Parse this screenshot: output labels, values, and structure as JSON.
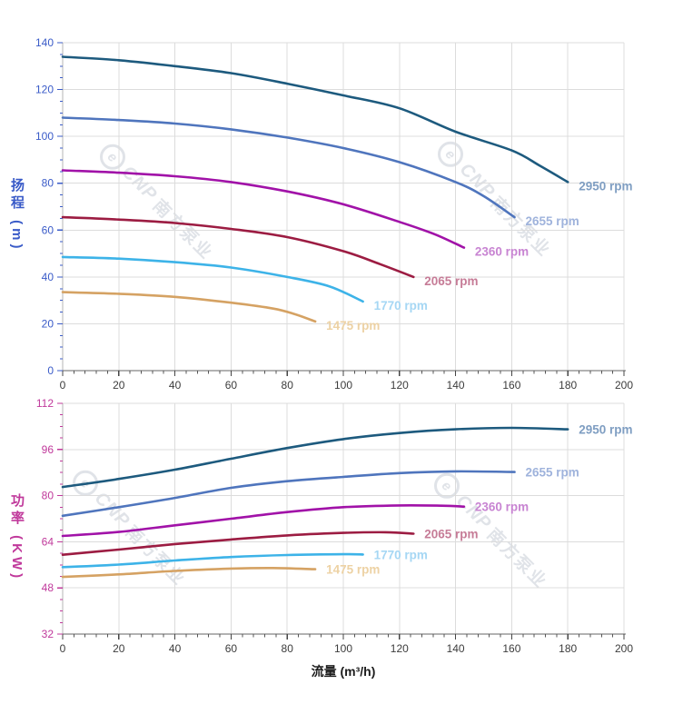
{
  "watermark": {
    "logo_letter": "e",
    "cnp": "CNP",
    "cn": "南方泵业",
    "color": "#c7cdd6"
  },
  "chart_data": [
    {
      "type": "line",
      "title": "",
      "xlabel": "",
      "ylabel": "扬程 (m)",
      "xlim": [
        0,
        200
      ],
      "ylim": [
        0,
        140
      ],
      "x_ticks": [
        0,
        20,
        40,
        60,
        80,
        100,
        120,
        140,
        160,
        180,
        200
      ],
      "y_ticks": [
        0,
        20,
        40,
        60,
        80,
        100,
        120,
        140
      ],
      "x_minor_step": 4,
      "y_minor_step": 5,
      "grid": true,
      "axis_label_color": "#3a5bc8",
      "x_tick_label_color": "#3c3c3c",
      "legend_position": "right-of-curve-end",
      "series": [
        {
          "name": "2950 rpm",
          "color": "#1d5a7e",
          "label_color": "#7f9ec2",
          "points": [
            [
              0,
              134
            ],
            [
              20,
              132.5
            ],
            [
              40,
              130
            ],
            [
              60,
              127
            ],
            [
              80,
              122.5
            ],
            [
              100,
              117.5
            ],
            [
              120,
              112
            ],
            [
              140,
              102
            ],
            [
              160,
              94
            ],
            [
              170,
              87.5
            ],
            [
              180,
              80.5
            ]
          ]
        },
        {
          "name": "2655 rpm",
          "color": "#4f75bd",
          "label_color": "#9fb3dc",
          "points": [
            [
              0,
              108
            ],
            [
              20,
              107
            ],
            [
              40,
              105.5
            ],
            [
              60,
              103
            ],
            [
              80,
              99.5
            ],
            [
              100,
              95
            ],
            [
              120,
              89
            ],
            [
              140,
              80.5
            ],
            [
              150,
              74.5
            ],
            [
              161,
              65.5
            ]
          ]
        },
        {
          "name": "2360 rpm",
          "color": "#a112a8",
          "label_color": "#c884d2",
          "points": [
            [
              0,
              85.5
            ],
            [
              20,
              84.5
            ],
            [
              40,
              83
            ],
            [
              60,
              80.5
            ],
            [
              80,
              76.5
            ],
            [
              100,
              71
            ],
            [
              120,
              63.5
            ],
            [
              133,
              58
            ],
            [
              143,
              52.5
            ]
          ]
        },
        {
          "name": "2065 rpm",
          "color": "#9c1c42",
          "label_color": "#c67c97",
          "points": [
            [
              0,
              65.5
            ],
            [
              20,
              64.5
            ],
            [
              40,
              63
            ],
            [
              60,
              60.5
            ],
            [
              80,
              57
            ],
            [
              100,
              51
            ],
            [
              113,
              45.5
            ],
            [
              125,
              40
            ]
          ]
        },
        {
          "name": "1770 rpm",
          "color": "#3db3e8",
          "label_color": "#a6d7f4",
          "points": [
            [
              0,
              48.5
            ],
            [
              20,
              47.8
            ],
            [
              40,
              46.3
            ],
            [
              60,
              44
            ],
            [
              80,
              40
            ],
            [
              95,
              36
            ],
            [
              107,
              29.5
            ]
          ]
        },
        {
          "name": "1475 rpm",
          "color": "#d5a263",
          "label_color": "#edd2a4",
          "points": [
            [
              0,
              33.5
            ],
            [
              20,
              32.8
            ],
            [
              40,
              31.5
            ],
            [
              60,
              29
            ],
            [
              75,
              26.5
            ],
            [
              83,
              24
            ],
            [
              90,
              21
            ]
          ]
        }
      ]
    },
    {
      "type": "line",
      "title": "",
      "xlabel": "流量 (m³/h)",
      "ylabel": "功率 (KW)",
      "xlim": [
        0,
        200
      ],
      "ylim": [
        32,
        112
      ],
      "x_ticks": [
        0,
        20,
        40,
        60,
        80,
        100,
        120,
        140,
        160,
        180,
        200
      ],
      "y_ticks": [
        32,
        48,
        64,
        80,
        96,
        112
      ],
      "x_minor_step": 4,
      "y_minor_step": 4,
      "grid": true,
      "axis_label_color": "#c0399b",
      "x_tick_label_color": "#3c3c3c",
      "legend_position": "right-of-curve-end",
      "series": [
        {
          "name": "2950 rpm",
          "color": "#1d5a7e",
          "label_color": "#7f9ec2",
          "points": [
            [
              0,
              83
            ],
            [
              20,
              85.8
            ],
            [
              40,
              89
            ],
            [
              60,
              92.8
            ],
            [
              80,
              96.5
            ],
            [
              100,
              99.6
            ],
            [
              120,
              101.7
            ],
            [
              140,
              103
            ],
            [
              160,
              103.5
            ],
            [
              180,
              103
            ]
          ]
        },
        {
          "name": "2655 rpm",
          "color": "#4f75bd",
          "label_color": "#9fb3dc",
          "points": [
            [
              0,
              73
            ],
            [
              20,
              76
            ],
            [
              40,
              79.2
            ],
            [
              60,
              82.7
            ],
            [
              80,
              85
            ],
            [
              100,
              86.5
            ],
            [
              120,
              87.8
            ],
            [
              140,
              88.4
            ],
            [
              161,
              88.2
            ]
          ]
        },
        {
          "name": "2360 rpm",
          "color": "#a112a8",
          "label_color": "#c884d2",
          "points": [
            [
              0,
              66
            ],
            [
              20,
              67.4
            ],
            [
              40,
              69.7
            ],
            [
              60,
              72
            ],
            [
              80,
              74.3
            ],
            [
              100,
              76
            ],
            [
              120,
              76.6
            ],
            [
              135,
              76.5
            ],
            [
              143,
              76.2
            ]
          ]
        },
        {
          "name": "2065 rpm",
          "color": "#9c1c42",
          "label_color": "#c67c97",
          "points": [
            [
              0,
              59.5
            ],
            [
              20,
              61.3
            ],
            [
              40,
              63.2
            ],
            [
              60,
              64.8
            ],
            [
              80,
              66.2
            ],
            [
              100,
              67.1
            ],
            [
              115,
              67.3
            ],
            [
              125,
              66.8
            ]
          ]
        },
        {
          "name": "1770 rpm",
          "color": "#3db3e8",
          "label_color": "#a6d7f4",
          "points": [
            [
              0,
              55.2
            ],
            [
              20,
              56.1
            ],
            [
              40,
              57.5
            ],
            [
              60,
              58.7
            ],
            [
              80,
              59.4
            ],
            [
              100,
              59.7
            ],
            [
              107,
              59.6
            ]
          ]
        },
        {
          "name": "1475 rpm",
          "color": "#d5a263",
          "label_color": "#edd2a4",
          "points": [
            [
              0,
              51.8
            ],
            [
              20,
              52.7
            ],
            [
              40,
              53.9
            ],
            [
              60,
              54.7
            ],
            [
              75,
              54.9
            ],
            [
              90,
              54.5
            ]
          ]
        }
      ]
    }
  ]
}
